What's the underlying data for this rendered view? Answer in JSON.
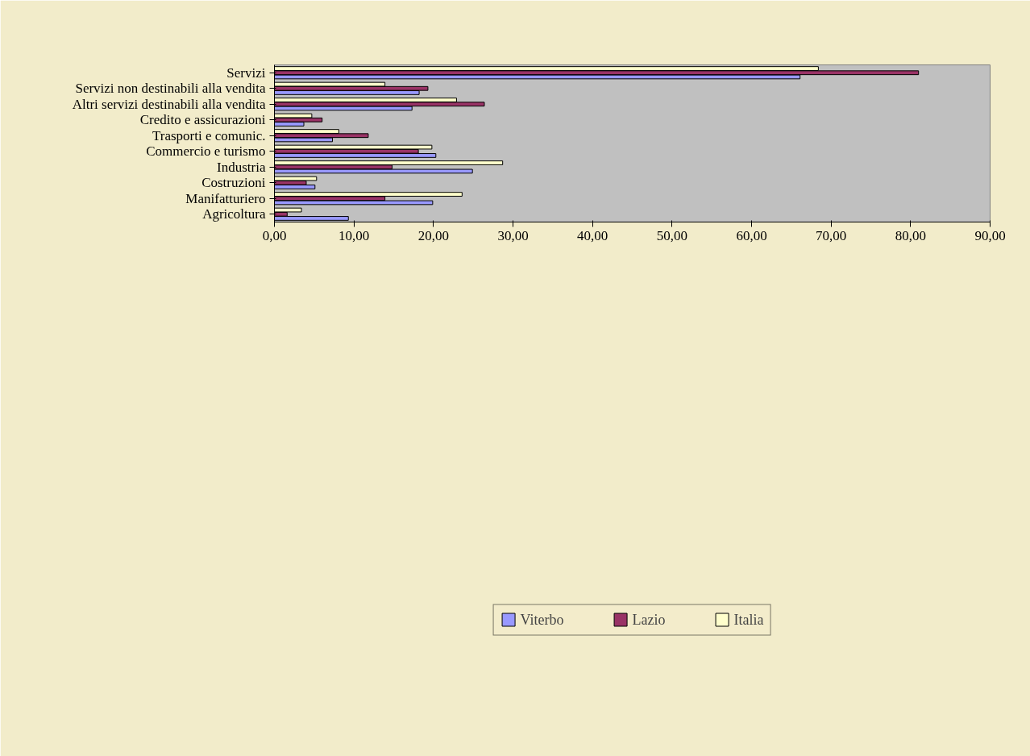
{
  "chart_data": {
    "type": "bar",
    "orientation": "horizontal",
    "categories": [
      "Servizi",
      "Servizi non destinabili alla vendita",
      "Altri servizi destinabili alla vendita",
      "Credito e assicurazioni",
      "Trasporti e comunic.",
      "Commercio e turismo",
      "Industria",
      "Costruzioni",
      "Manifatturiero",
      "Agricoltura"
    ],
    "series": [
      {
        "name": "Viterbo",
        "color": "#9999ff",
        "values": [
          66.1,
          18.2,
          17.3,
          3.7,
          7.3,
          20.3,
          24.9,
          5.1,
          19.9,
          9.3
        ]
      },
      {
        "name": "Lazio",
        "color": "#993366",
        "values": [
          81.0,
          19.3,
          26.4,
          6.0,
          11.8,
          18.1,
          14.8,
          4.0,
          13.9,
          1.6
        ]
      },
      {
        "name": "Italia",
        "color": "#ffffcc",
        "values": [
          68.4,
          13.9,
          22.9,
          4.7,
          8.1,
          19.8,
          28.7,
          5.3,
          23.6,
          3.4
        ]
      }
    ],
    "xlim": [
      0,
      90
    ],
    "xticks": [
      {
        "value": 0,
        "label": "0,00"
      },
      {
        "value": 10,
        "label": "10,00"
      },
      {
        "value": 20,
        "label": "20,00"
      },
      {
        "value": 30,
        "label": "30,00"
      },
      {
        "value": 40,
        "label": "40,00"
      },
      {
        "value": 50,
        "label": "50,00"
      },
      {
        "value": 60,
        "label": "60,00"
      },
      {
        "value": 70,
        "label": "70,00"
      },
      {
        "value": 80,
        "label": "80,00"
      },
      {
        "value": 90,
        "label": "90,00"
      }
    ],
    "grid": false,
    "legend": "bottom"
  }
}
